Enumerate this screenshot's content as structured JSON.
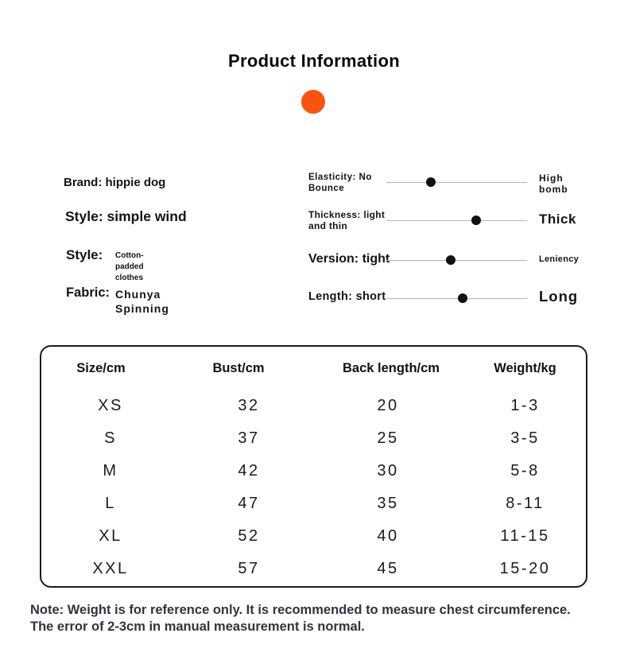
{
  "title": "Product Information",
  "colors": {
    "accent_orange": "#F95311",
    "slider_track_gray": "#B5B5B5",
    "slider_dot_black": "#111111",
    "note_text": "#3A2F3F",
    "table_border": "#1B1B1B"
  },
  "attributes": {
    "brand": "Brand: hippie dog",
    "style_main": "Style: simple wind",
    "style2_label": "Style:",
    "style2_value": "Cotton-\npadded\nclothes",
    "fabric_label": "Fabric:",
    "fabric_value": "Chunya\nSpinning"
  },
  "sliders": [
    {
      "name": "elasticity",
      "label": "Elasticity: No\nBounce",
      "right_label": "High\nbomb",
      "dot_percent": 31.6
    },
    {
      "name": "thickness",
      "label": "Thickness: light\nand thin",
      "right_label": "Thick",
      "dot_percent": 63.8
    },
    {
      "name": "version",
      "label": "Version: tight",
      "right_label": "Leniency",
      "dot_percent": 45.8
    },
    {
      "name": "length",
      "label": "Length: short",
      "right_label": "Long",
      "dot_percent": 54.2
    }
  ],
  "table": {
    "headers": [
      "Size/cm",
      "Bust/cm",
      "Back length/cm",
      "Weight/kg"
    ],
    "rows": [
      [
        "XS",
        "32",
        "20",
        "1-3"
      ],
      [
        "S",
        "37",
        "25",
        "3-5"
      ],
      [
        "M",
        "42",
        "30",
        "5-8"
      ],
      [
        "L",
        "47",
        "35",
        "8-11"
      ],
      [
        "XL",
        "52",
        "40",
        "11-15"
      ],
      [
        "XXL",
        "57",
        "45",
        "15-20"
      ]
    ]
  },
  "note": "Note: Weight is for reference only. It is recommended to measure chest circumference.\nThe error of 2-3cm in manual measurement is normal."
}
